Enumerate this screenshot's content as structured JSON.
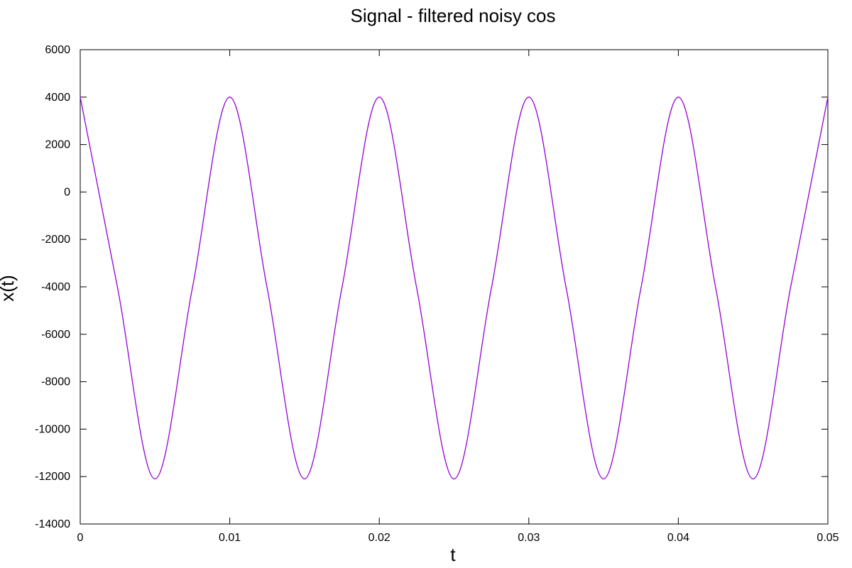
{
  "chart_data": {
    "type": "line",
    "title": "Signal - filtered noisy cos",
    "xlabel": "t",
    "ylabel": "x(t)",
    "xlim": [
      0,
      0.05
    ],
    "ylim": [
      -14000,
      6000
    ],
    "x_ticks": [
      0,
      0.01,
      0.02,
      0.03,
      0.04,
      0.05
    ],
    "x_tick_labels": [
      "0",
      "0.01",
      "0.02",
      "0.03",
      "0.04",
      "0.05"
    ],
    "y_ticks": [
      6000,
      4000,
      2000,
      0,
      -2000,
      -4000,
      -6000,
      -8000,
      -10000,
      -12000,
      -14000
    ],
    "y_tick_labels": [
      "6000",
      "4000",
      "2000",
      "0",
      "-2000",
      "-4000",
      "-6000",
      "-8000",
      "-10000",
      "-12000",
      "-14000"
    ],
    "grid": false,
    "legend": "none",
    "series": [
      {
        "color": "#9400d3",
        "x": [
          0,
          0.0025,
          0.005,
          0.0075,
          0.01,
          0.0125,
          0.015,
          0.0175,
          0.02,
          0.0225,
          0.025,
          0.0275,
          0.03,
          0.0325,
          0.035,
          0.0375,
          0.04,
          0.0425,
          0.045,
          0.0475,
          0.05
        ],
        "values": [
          4000,
          -4050,
          -12100,
          -4050,
          4000,
          -4050,
          -12100,
          -4050,
          4000,
          -4050,
          -12100,
          -4050,
          4000,
          -4050,
          -12100,
          -4050,
          4000,
          -4050,
          -12100,
          -4050,
          4000
        ]
      }
    ]
  }
}
